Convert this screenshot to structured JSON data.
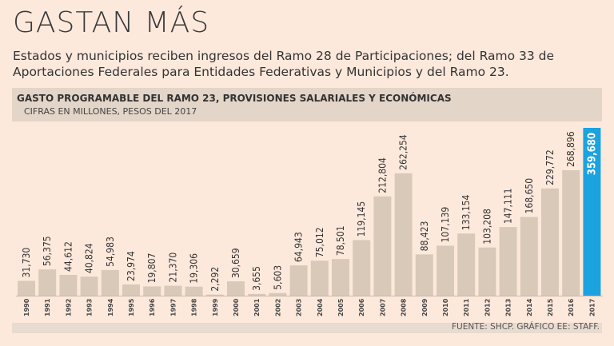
{
  "header": {
    "title": "GASTAN MÁS",
    "subtitle": "Estados y municipios reciben ingresos del Ramo 28 de Participaciones; del Ramo 33 de Aportaciones Federales para Entidades Federativas y Municipios y del Ramo 23."
  },
  "chart_data": {
    "type": "bar",
    "title": "GASTO PROGRAMABLE DEL RAMO 23, PROVISIONES SALARIALES Y ECONÓMICAS",
    "subtitle": "CIFRAS EN MILLONES, PESOS DEL 2017",
    "categories": [
      "1990",
      "1991",
      "1992",
      "1993",
      "1994",
      "1995",
      "1996",
      "1997",
      "1998",
      "1999",
      "2000",
      "2001",
      "2002",
      "2003",
      "2004",
      "2005",
      "2006",
      "2007",
      "2008",
      "2009",
      "2010",
      "2011",
      "2012",
      "2013",
      "2014",
      "2015",
      "2016",
      "2017"
    ],
    "values": [
      31730,
      56375,
      44612,
      40824,
      54983,
      23974,
      19807,
      21370,
      19306,
      2292,
      30659,
      3655,
      5603,
      64943,
      75012,
      78501,
      119145,
      212804,
      262254,
      88423,
      107139,
      133154,
      103208,
      147111,
      168650,
      229772,
      268896,
      359680
    ],
    "labels": [
      "31,730",
      "56,375",
      "44,612",
      "40,824",
      "54,983",
      "23,974",
      "19,807",
      "21,370",
      "19,306",
      "2,292",
      "30,659",
      "3,655",
      "5,603",
      "64,943",
      "75,012",
      "78,501",
      "119,145",
      "212,804",
      "262,254",
      "88,423",
      "107,139",
      "133,154",
      "103,208",
      "147,111",
      "168,650",
      "229,772",
      "268,896",
      "359,680"
    ],
    "highlight_index": 27,
    "colors": {
      "bar": "#d9c9b8",
      "highlight": "#1aa3e0"
    },
    "source": "FUENTE: SHCP.  GRÁFICO EE: STAFF."
  }
}
